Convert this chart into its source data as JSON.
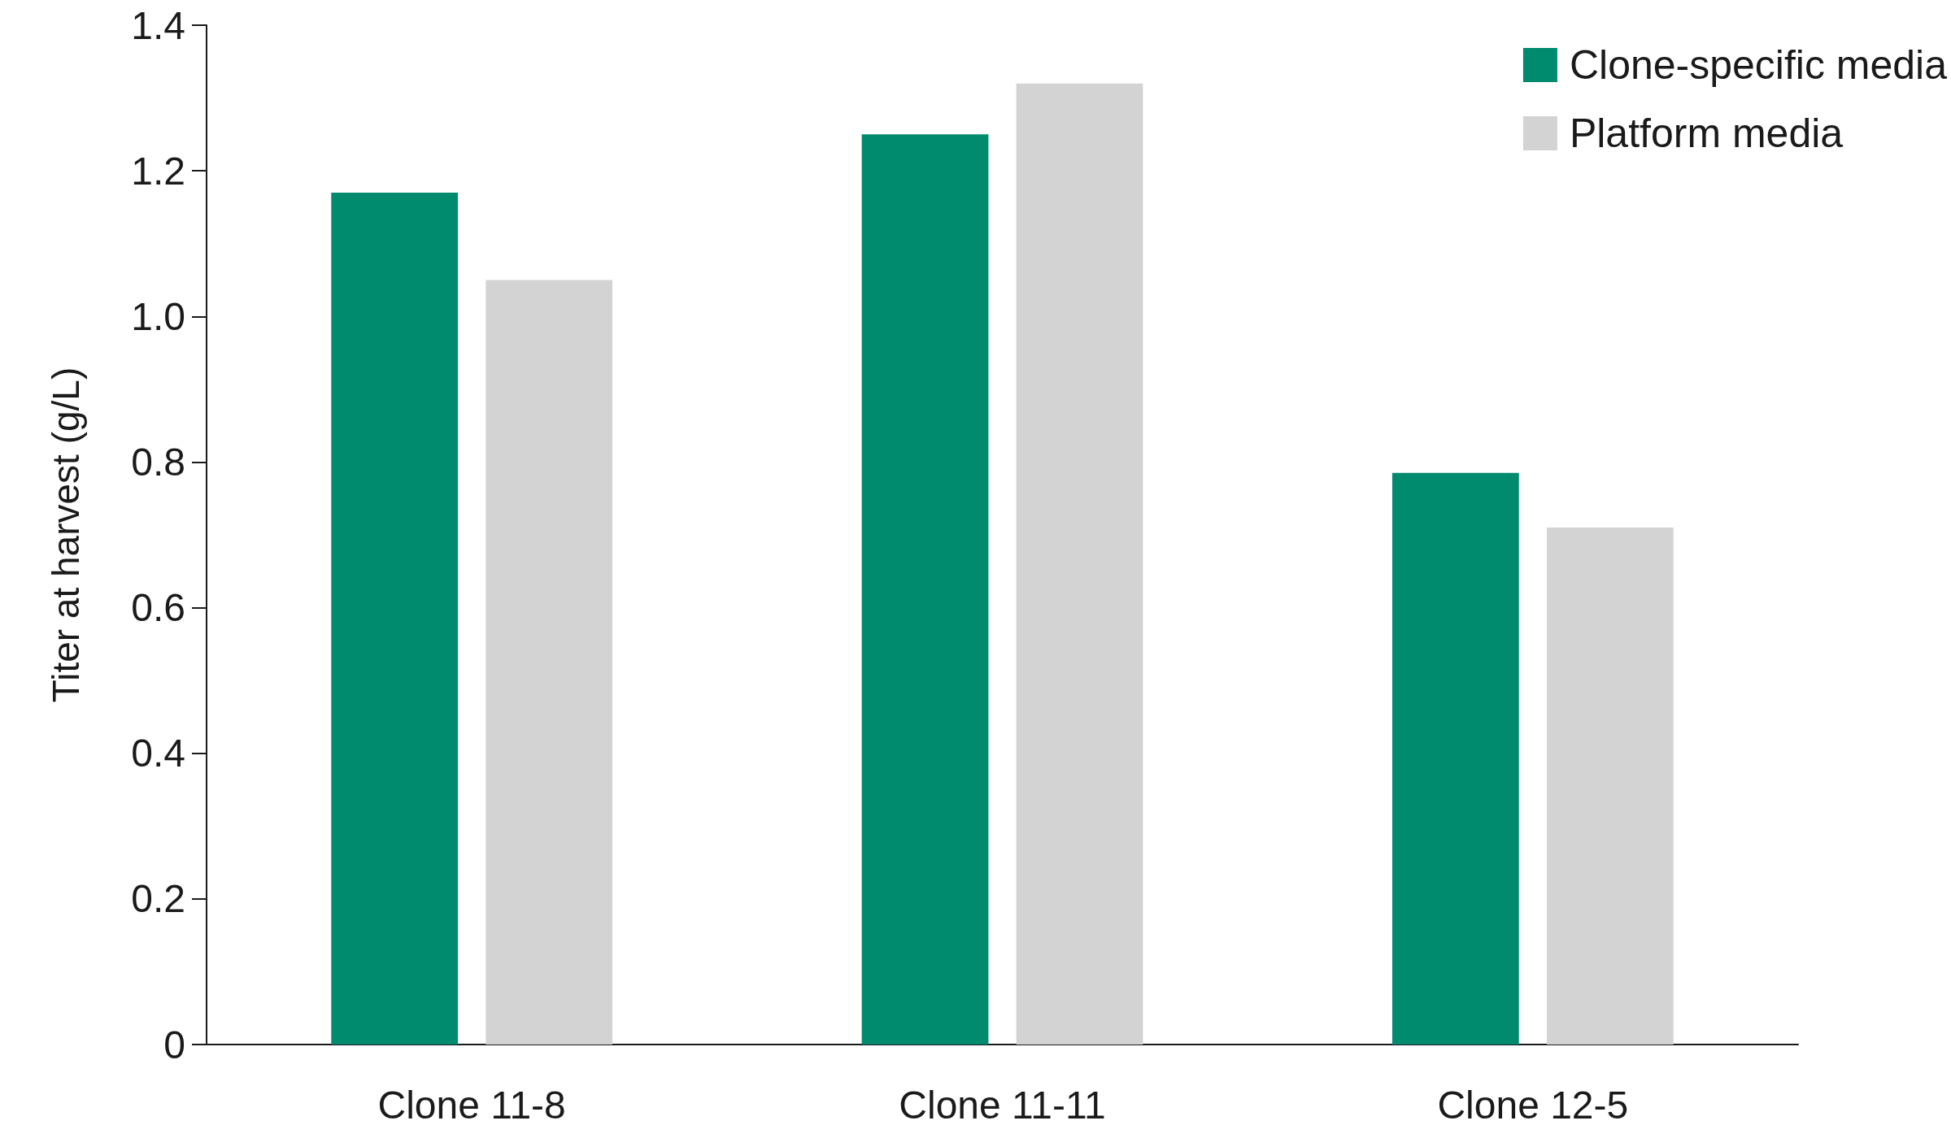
{
  "chart_data": {
    "type": "bar",
    "ylabel": "Titer at harvest (g/L)",
    "categories": [
      "Clone 11-8",
      "Clone 11-11",
      "Clone 12-5"
    ],
    "series": [
      {
        "name": "Clone-specific media",
        "color": "#008a6e",
        "values": [
          1.17,
          1.25,
          0.785
        ]
      },
      {
        "name": "Platform media",
        "color": "#d3d3d3",
        "values": [
          1.05,
          1.32,
          0.71
        ]
      }
    ],
    "ylim": [
      0,
      1.4
    ],
    "yticks": [
      0,
      0.2,
      0.4,
      0.6,
      0.8,
      {
        "value": 1,
        "label": "1.0"
      },
      1.2,
      1.4
    ],
    "grid": false,
    "legend": "top right"
  }
}
